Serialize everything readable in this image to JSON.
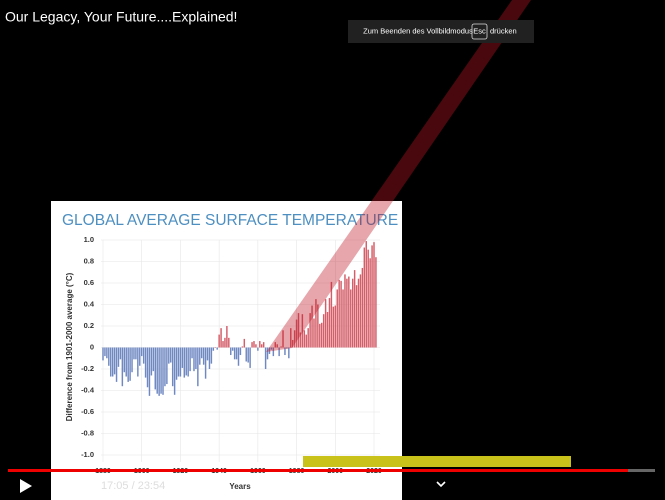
{
  "video": {
    "title": "Our Legacy, Your Future....Explained!",
    "fullscreen_notice": {
      "before": "Zum Beenden des Vollbildmodus",
      "key": "Esc",
      "after": "drücken"
    },
    "time": "17:05 / 23:54"
  },
  "chart_data": {
    "type": "bar",
    "title": "GLOBAL AVERAGE SURFACE TEMPERATURE",
    "y_label": "Difference from 1901-2000 average (°C)",
    "x_label": "Years",
    "positive_color": "#d45d68",
    "negative_color": "#6f88c2",
    "grid": true,
    "xlim": [
      1879,
      2022
    ],
    "xticks": [
      1880,
      1900,
      1920,
      1940,
      1960,
      1980,
      2000,
      2020
    ],
    "ylim": [
      -1.1,
      1.05
    ],
    "yticks": [
      {
        "value": 1,
        "label": "1.0"
      },
      0.8,
      0.6,
      0.4,
      0.2,
      0,
      -0.2,
      -0.4,
      -0.6,
      -0.8,
      {
        "value": -1,
        "label": "-1.0"
      }
    ],
    "x": [
      1880,
      1881,
      1882,
      1883,
      1884,
      1885,
      1886,
      1887,
      1888,
      1889,
      1890,
      1891,
      1892,
      1893,
      1894,
      1895,
      1896,
      1897,
      1898,
      1899,
      1900,
      1901,
      1902,
      1903,
      1904,
      1905,
      1906,
      1907,
      1908,
      1909,
      1910,
      1911,
      1912,
      1913,
      1914,
      1915,
      1916,
      1917,
      1918,
      1919,
      1920,
      1921,
      1922,
      1923,
      1924,
      1925,
      1926,
      1927,
      1928,
      1929,
      1930,
      1931,
      1932,
      1933,
      1934,
      1935,
      1936,
      1937,
      1938,
      1939,
      1940,
      1941,
      1942,
      1943,
      1944,
      1945,
      1946,
      1947,
      1948,
      1949,
      1950,
      1951,
      1952,
      1953,
      1954,
      1955,
      1956,
      1957,
      1958,
      1959,
      1960,
      1961,
      1962,
      1963,
      1964,
      1965,
      1966,
      1967,
      1968,
      1969,
      1970,
      1971,
      1972,
      1973,
      1974,
      1975,
      1976,
      1977,
      1978,
      1979,
      1980,
      1981,
      1982,
      1983,
      1984,
      1985,
      1986,
      1987,
      1988,
      1989,
      1990,
      1991,
      1992,
      1993,
      1994,
      1995,
      1996,
      1997,
      1998,
      1999,
      2000,
      2001,
      2002,
      2003,
      2004,
      2005,
      2006,
      2007,
      2008,
      2009,
      2010,
      2011,
      2012,
      2013,
      2014,
      2015,
      2016,
      2017,
      2018,
      2019,
      2020,
      2021
    ],
    "values": [
      -0.12,
      -0.08,
      -0.1,
      -0.17,
      -0.27,
      -0.27,
      -0.25,
      -0.32,
      -0.18,
      -0.11,
      -0.36,
      -0.23,
      -0.27,
      -0.32,
      -0.31,
      -0.23,
      -0.11,
      -0.11,
      -0.27,
      -0.17,
      -0.08,
      -0.15,
      -0.28,
      -0.37,
      -0.45,
      -0.26,
      -0.22,
      -0.39,
      -0.43,
      -0.45,
      -0.43,
      -0.44,
      -0.36,
      -0.34,
      -0.15,
      -0.14,
      -0.36,
      -0.44,
      -0.3,
      -0.27,
      -0.27,
      -0.19,
      -0.28,
      -0.26,
      -0.27,
      -0.22,
      -0.1,
      -0.22,
      -0.2,
      -0.36,
      -0.16,
      -0.1,
      -0.16,
      -0.29,
      -0.12,
      -0.2,
      -0.15,
      -0.03,
      0,
      -0.02,
      0.12,
      0.18,
      0.06,
      0.09,
      0.2,
      0.09,
      -0.07,
      -0.03,
      -0.11,
      -0.11,
      -0.17,
      -0.07,
      0.01,
      0.08,
      -0.13,
      -0.14,
      -0.19,
      0.05,
      0.06,
      0.03,
      -0.03,
      0.06,
      0.03,
      0.05,
      -0.2,
      -0.11,
      -0.06,
      -0.02,
      -0.08,
      0.05,
      0.03,
      -0.08,
      0.01,
      0.16,
      -0.07,
      -0.01,
      -0.1,
      0.18,
      0.07,
      0.16,
      0.26,
      0.32,
      0.14,
      0.31,
      0.16,
      0.12,
      0.18,
      0.32,
      0.39,
      0.27,
      0.45,
      0.4,
      0.22,
      0.23,
      0.31,
      0.45,
      0.33,
      0.46,
      0.61,
      0.38,
      0.39,
      0.54,
      0.63,
      0.62,
      0.54,
      0.68,
      0.64,
      0.66,
      0.54,
      0.64,
      0.72,
      0.58,
      0.64,
      0.68,
      0.74,
      0.93,
      0.99,
      0.91,
      0.83,
      0.95,
      0.98,
      0.84
    ]
  }
}
